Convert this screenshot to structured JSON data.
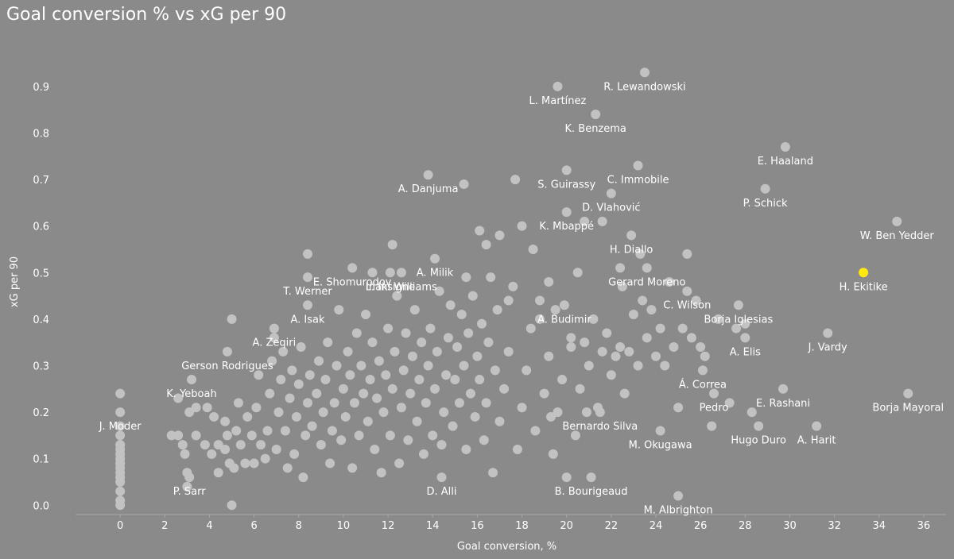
{
  "chart_data": {
    "type": "scatter",
    "title": "Goal conversion % vs xG per 90",
    "xlabel": "Goal conversion, %",
    "ylabel": "xG per 90",
    "xlim": [
      -2,
      37
    ],
    "ylim": [
      -0.02,
      0.98
    ],
    "xticks": [
      0,
      2,
      4,
      6,
      8,
      10,
      12,
      14,
      16,
      18,
      20,
      22,
      24,
      26,
      28,
      30,
      32,
      34,
      36
    ],
    "yticks": [
      0.0,
      0.1,
      0.2,
      0.3,
      0.4,
      0.5,
      0.6,
      0.7,
      0.8,
      0.9
    ],
    "grid": false,
    "colors": {
      "background": "#8a8a8a",
      "point": "#c2c2c2",
      "highlight": "#fde910",
      "text": "#ffffff",
      "axis": "#a8a8a8"
    },
    "highlight": "H. Ekitike",
    "labeled_points": [
      {
        "name": "R. Lewandowski",
        "x": 23.5,
        "y": 0.93
      },
      {
        "name": "L. Martínez",
        "x": 19.6,
        "y": 0.9
      },
      {
        "name": "K. Benzema",
        "x": 21.3,
        "y": 0.84
      },
      {
        "name": "E. Haaland",
        "x": 29.8,
        "y": 0.77
      },
      {
        "name": "C. Immobile",
        "x": 23.2,
        "y": 0.73
      },
      {
        "name": "S. Guirassy",
        "x": 20.0,
        "y": 0.72
      },
      {
        "name": "A. Danjuma",
        "x": 13.8,
        "y": 0.71
      },
      {
        "name": "P. Schick",
        "x": 28.9,
        "y": 0.68
      },
      {
        "name": "D. Vlahović",
        "x": 22.0,
        "y": 0.67
      },
      {
        "name": "K. Mbappé",
        "x": 20.0,
        "y": 0.63
      },
      {
        "name": "W. Ben Yedder",
        "x": 34.8,
        "y": 0.61
      },
      {
        "name": "H. Diallo",
        "x": 22.9,
        "y": 0.58
      },
      {
        "name": "A. Milik",
        "x": 14.1,
        "y": 0.53
      },
      {
        "name": "E. Shomurodov",
        "x": 10.4,
        "y": 0.51
      },
      {
        "name": "L. Insigne",
        "x": 12.1,
        "y": 0.5
      },
      {
        "name": "Gerard Moreno",
        "x": 23.6,
        "y": 0.51
      },
      {
        "name": "H. Ekitike",
        "x": 33.3,
        "y": 0.5
      },
      {
        "name": "T. Werner",
        "x": 8.4,
        "y": 0.49
      },
      {
        "name": "Iñaki Williams",
        "x": 12.6,
        "y": 0.5
      },
      {
        "name": "C. Wilson",
        "x": 25.4,
        "y": 0.46
      },
      {
        "name": "A. Isak",
        "x": 8.4,
        "y": 0.43
      },
      {
        "name": "Borja Iglesias",
        "x": 27.7,
        "y": 0.43
      },
      {
        "name": "A. Budimir",
        "x": 19.9,
        "y": 0.43
      },
      {
        "name": "J. Vardy",
        "x": 31.7,
        "y": 0.37
      },
      {
        "name": "A. Zeqiri",
        "x": 6.9,
        "y": 0.38
      },
      {
        "name": "A. Elis",
        "x": 28.0,
        "y": 0.36
      },
      {
        "name": "Gerson Rodrigues",
        "x": 4.8,
        "y": 0.33
      },
      {
        "name": "Á. Correa",
        "x": 26.1,
        "y": 0.29
      },
      {
        "name": "K. Yeboah",
        "x": 3.2,
        "y": 0.27
      },
      {
        "name": "E. Rashani",
        "x": 29.7,
        "y": 0.25
      },
      {
        "name": "Borja Mayoral",
        "x": 35.3,
        "y": 0.24
      },
      {
        "name": "Pedro",
        "x": 26.6,
        "y": 0.24
      },
      {
        "name": "J. Moder",
        "x": 0.0,
        "y": 0.2
      },
      {
        "name": "Bernardo Silva",
        "x": 21.5,
        "y": 0.2
      },
      {
        "name": "A. Harit",
        "x": 31.2,
        "y": 0.17
      },
      {
        "name": "Hugo Duro",
        "x": 28.6,
        "y": 0.17
      },
      {
        "name": "M. Okugawa",
        "x": 24.2,
        "y": 0.16
      },
      {
        "name": "B. Bourigeaud",
        "x": 21.1,
        "y": 0.06
      },
      {
        "name": "D. Alli",
        "x": 14.4,
        "y": 0.06
      },
      {
        "name": "P. Sarr",
        "x": 3.1,
        "y": 0.06
      },
      {
        "name": "M. Albrighton",
        "x": 25.0,
        "y": 0.02
      }
    ],
    "other_points": [
      [
        0,
        0.0
      ],
      [
        0,
        0.01
      ],
      [
        0,
        0.03
      ],
      [
        0,
        0.05
      ],
      [
        0,
        0.06
      ],
      [
        0,
        0.07
      ],
      [
        0,
        0.08
      ],
      [
        0,
        0.09
      ],
      [
        0,
        0.1
      ],
      [
        0,
        0.11
      ],
      [
        0,
        0.12
      ],
      [
        0,
        0.13
      ],
      [
        0,
        0.15
      ],
      [
        0,
        0.17
      ],
      [
        0,
        0.24
      ],
      [
        5,
        0.0
      ],
      [
        5,
        0.4
      ],
      [
        3,
        0.04
      ],
      [
        3,
        0.07
      ],
      [
        3.4,
        0.15
      ],
      [
        2.9,
        0.11
      ],
      [
        2.6,
        0.15
      ],
      [
        2.3,
        0.15
      ],
      [
        2.8,
        0.13
      ],
      [
        3.1,
        0.2
      ],
      [
        3.4,
        0.21
      ],
      [
        2.6,
        0.23
      ],
      [
        3.8,
        0.13
      ],
      [
        3.9,
        0.21
      ],
      [
        4.1,
        0.11
      ],
      [
        4.2,
        0.19
      ],
      [
        4.4,
        0.13
      ],
      [
        4.4,
        0.07
      ],
      [
        4.7,
        0.12
      ],
      [
        4.7,
        0.18
      ],
      [
        4.8,
        0.15
      ],
      [
        4.9,
        0.09
      ],
      [
        5.1,
        0.08
      ],
      [
        5.2,
        0.16
      ],
      [
        5.3,
        0.22
      ],
      [
        5.4,
        0.13
      ],
      [
        5.6,
        0.09
      ],
      [
        5.7,
        0.19
      ],
      [
        5.9,
        0.15
      ],
      [
        6.0,
        0.09
      ],
      [
        6.1,
        0.21
      ],
      [
        6.2,
        0.28
      ],
      [
        6.3,
        0.13
      ],
      [
        6.5,
        0.1
      ],
      [
        6.6,
        0.16
      ],
      [
        6.7,
        0.24
      ],
      [
        6.8,
        0.31
      ],
      [
        6.9,
        0.36
      ],
      [
        7.0,
        0.12
      ],
      [
        7.1,
        0.2
      ],
      [
        7.2,
        0.27
      ],
      [
        7.3,
        0.33
      ],
      [
        7.4,
        0.16
      ],
      [
        7.5,
        0.08
      ],
      [
        7.6,
        0.23
      ],
      [
        7.7,
        0.29
      ],
      [
        7.8,
        0.11
      ],
      [
        7.9,
        0.19
      ],
      [
        8.0,
        0.26
      ],
      [
        8.1,
        0.34
      ],
      [
        8.2,
        0.06
      ],
      [
        8.3,
        0.15
      ],
      [
        8.4,
        0.22
      ],
      [
        8.5,
        0.28
      ],
      [
        8.6,
        0.17
      ],
      [
        8.8,
        0.24
      ],
      [
        8.9,
        0.31
      ],
      [
        9.0,
        0.13
      ],
      [
        9.1,
        0.2
      ],
      [
        9.2,
        0.27
      ],
      [
        9.3,
        0.35
      ],
      [
        9.4,
        0.09
      ],
      [
        9.5,
        0.16
      ],
      [
        9.6,
        0.22
      ],
      [
        9.7,
        0.3
      ],
      [
        9.8,
        0.42
      ],
      [
        9.9,
        0.14
      ],
      [
        10.0,
        0.25
      ],
      [
        10.1,
        0.19
      ],
      [
        10.2,
        0.33
      ],
      [
        10.3,
        0.28
      ],
      [
        10.4,
        0.08
      ],
      [
        10.5,
        0.22
      ],
      [
        10.6,
        0.37
      ],
      [
        10.7,
        0.15
      ],
      [
        10.8,
        0.3
      ],
      [
        10.9,
        0.24
      ],
      [
        11.0,
        0.41
      ],
      [
        11.1,
        0.18
      ],
      [
        11.2,
        0.27
      ],
      [
        11.3,
        0.35
      ],
      [
        11.4,
        0.12
      ],
      [
        11.5,
        0.23
      ],
      [
        11.6,
        0.31
      ],
      [
        11.7,
        0.07
      ],
      [
        11.8,
        0.2
      ],
      [
        11.9,
        0.28
      ],
      [
        12.0,
        0.38
      ],
      [
        12.1,
        0.15
      ],
      [
        12.2,
        0.25
      ],
      [
        12.3,
        0.33
      ],
      [
        12.4,
        0.45
      ],
      [
        12.5,
        0.09
      ],
      [
        12.6,
        0.21
      ],
      [
        12.7,
        0.29
      ],
      [
        12.8,
        0.37
      ],
      [
        12.9,
        0.14
      ],
      [
        13.0,
        0.24
      ],
      [
        13.1,
        0.32
      ],
      [
        13.2,
        0.42
      ],
      [
        13.3,
        0.18
      ],
      [
        13.4,
        0.27
      ],
      [
        13.5,
        0.35
      ],
      [
        13.6,
        0.11
      ],
      [
        13.7,
        0.22
      ],
      [
        13.8,
        0.3
      ],
      [
        13.9,
        0.38
      ],
      [
        14.0,
        0.15
      ],
      [
        14.1,
        0.25
      ],
      [
        14.2,
        0.33
      ],
      [
        14.3,
        0.46
      ],
      [
        14.4,
        0.13
      ],
      [
        14.5,
        0.2
      ],
      [
        14.6,
        0.28
      ],
      [
        14.7,
        0.36
      ],
      [
        14.8,
        0.43
      ],
      [
        14.9,
        0.17
      ],
      [
        15.0,
        0.27
      ],
      [
        15.1,
        0.34
      ],
      [
        15.2,
        0.22
      ],
      [
        15.3,
        0.41
      ],
      [
        15.4,
        0.3
      ],
      [
        15.5,
        0.12
      ],
      [
        15.6,
        0.37
      ],
      [
        15.7,
        0.24
      ],
      [
        15.8,
        0.45
      ],
      [
        15.9,
        0.19
      ],
      [
        16.0,
        0.32
      ],
      [
        16.1,
        0.27
      ],
      [
        16.2,
        0.39
      ],
      [
        16.3,
        0.14
      ],
      [
        16.4,
        0.22
      ],
      [
        16.5,
        0.35
      ],
      [
        16.6,
        0.49
      ],
      [
        16.7,
        0.07
      ],
      [
        16.8,
        0.29
      ],
      [
        16.9,
        0.42
      ],
      [
        17.0,
        0.18
      ],
      [
        17.2,
        0.25
      ],
      [
        17.4,
        0.33
      ],
      [
        17.6,
        0.47
      ],
      [
        17.8,
        0.12
      ],
      [
        18.0,
        0.21
      ],
      [
        18.2,
        0.29
      ],
      [
        18.4,
        0.38
      ],
      [
        18.6,
        0.16
      ],
      [
        18.8,
        0.44
      ],
      [
        19.0,
        0.24
      ],
      [
        19.2,
        0.32
      ],
      [
        19.4,
        0.11
      ],
      [
        19.6,
        0.2
      ],
      [
        19.8,
        0.27
      ],
      [
        20.0,
        0.06
      ],
      [
        20.2,
        0.36
      ],
      [
        20.4,
        0.15
      ],
      [
        20.6,
        0.25
      ],
      [
        20.8,
        0.35
      ],
      [
        21.0,
        0.3
      ],
      [
        21.2,
        0.4
      ],
      [
        21.4,
        0.21
      ],
      [
        21.6,
        0.33
      ],
      [
        21.8,
        0.37
      ],
      [
        22.0,
        0.28
      ],
      [
        22.2,
        0.32
      ],
      [
        22.4,
        0.34
      ],
      [
        22.6,
        0.24
      ],
      [
        22.8,
        0.33
      ],
      [
        23.0,
        0.41
      ],
      [
        23.2,
        0.3
      ],
      [
        23.4,
        0.44
      ],
      [
        23.6,
        0.36
      ],
      [
        23.8,
        0.42
      ],
      [
        24.0,
        0.32
      ],
      [
        24.2,
        0.38
      ],
      [
        24.4,
        0.3
      ],
      [
        24.6,
        0.48
      ],
      [
        24.8,
        0.34
      ],
      [
        25.0,
        0.21
      ],
      [
        25.2,
        0.38
      ],
      [
        25.4,
        0.54
      ],
      [
        25.6,
        0.36
      ],
      [
        25.8,
        0.44
      ],
      [
        26.0,
        0.34
      ],
      [
        26.2,
        0.32
      ],
      [
        26.5,
        0.17
      ],
      [
        26.8,
        0.4
      ],
      [
        27.3,
        0.22
      ],
      [
        27.6,
        0.38
      ],
      [
        28.0,
        0.39
      ],
      [
        28.3,
        0.2
      ],
      [
        18.0,
        0.6
      ],
      [
        18.5,
        0.55
      ],
      [
        19.2,
        0.48
      ],
      [
        20.5,
        0.5
      ],
      [
        20.8,
        0.61
      ],
      [
        21.6,
        0.61
      ],
      [
        23.3,
        0.54
      ],
      [
        22.4,
        0.51
      ],
      [
        22.5,
        0.47
      ],
      [
        17.7,
        0.7
      ],
      [
        15.4,
        0.69
      ],
      [
        16.1,
        0.59
      ],
      [
        17.0,
        0.58
      ],
      [
        12.2,
        0.56
      ],
      [
        8.4,
        0.54
      ],
      [
        11.3,
        0.5
      ],
      [
        15.5,
        0.49
      ],
      [
        16.4,
        0.56
      ],
      [
        17.4,
        0.44
      ],
      [
        18.8,
        0.4
      ],
      [
        19.5,
        0.42
      ],
      [
        20.2,
        0.34
      ],
      [
        19.3,
        0.19
      ],
      [
        20.9,
        0.2
      ]
    ]
  }
}
